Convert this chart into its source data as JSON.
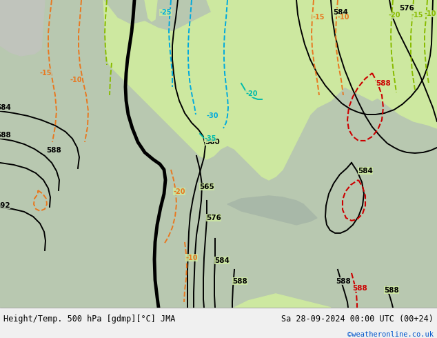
{
  "title_left": "Height/Temp. 500 hPa [gdmp][°C] JMA",
  "title_right": "Sa 28-09-2024 00:00 UTC (00+24)",
  "watermark": "©weatheronline.co.uk",
  "bg_land_color": "#cde8a0",
  "bg_ocean_color": "#b8c8b8",
  "fig_width": 6.34,
  "fig_height": 4.9,
  "dpi": 100
}
